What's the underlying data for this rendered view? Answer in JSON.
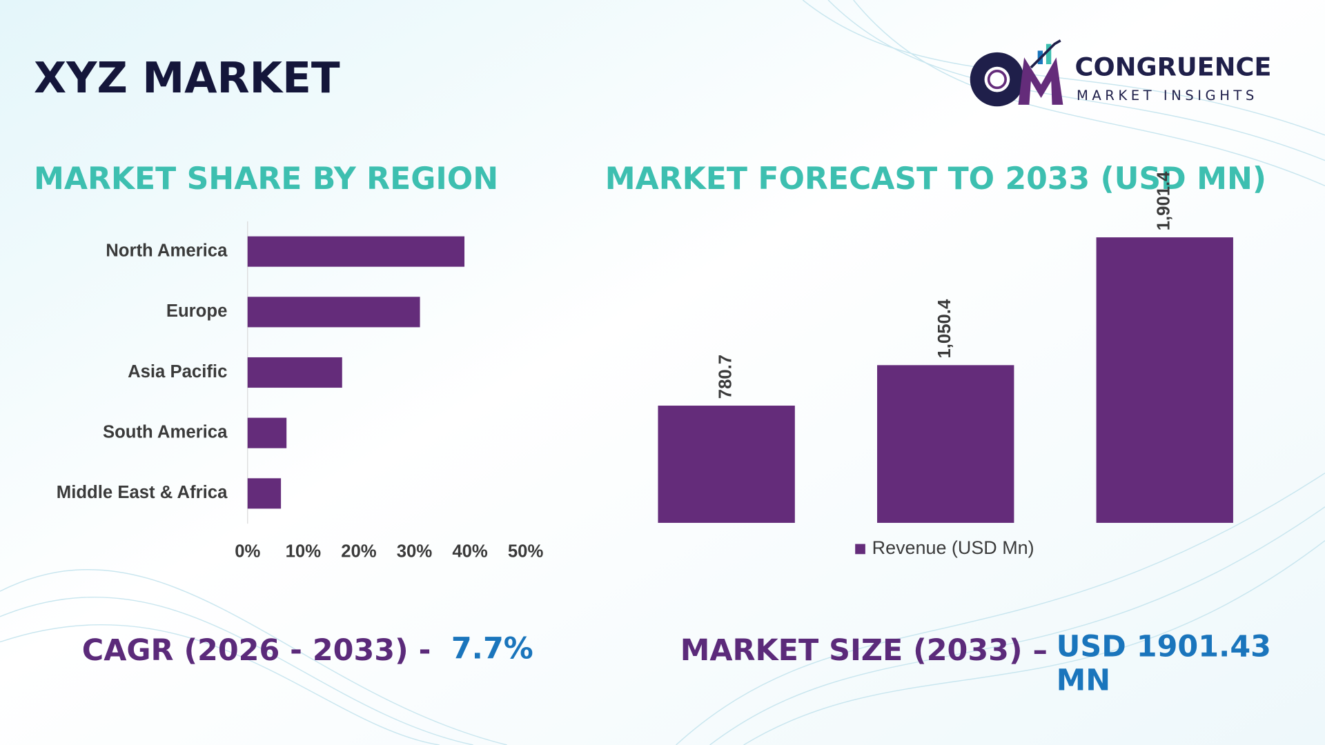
{
  "header": {
    "title": "XYZ MARKET",
    "logo": {
      "name": "CONGRUENCE",
      "tagline": "MARKET INSIGHTS"
    }
  },
  "chart_data": [
    {
      "type": "hbar",
      "title": "MARKET SHARE BY REGION",
      "categories": [
        "North America",
        "Europe",
        "Asia Pacific",
        "South America",
        "Middle East & Africa"
      ],
      "values": [
        39,
        31,
        17,
        7,
        6
      ],
      "color": "#642c7a",
      "xlim": [
        0,
        50
      ],
      "xticks": [
        {
          "value": 0,
          "label": "0%"
        },
        {
          "value": 10,
          "label": "10%"
        },
        {
          "value": 20,
          "label": "20%"
        },
        {
          "value": 30,
          "label": "30%"
        },
        {
          "value": 40,
          "label": "40%"
        },
        {
          "value": 50,
          "label": "50%"
        }
      ]
    },
    {
      "type": "bar",
      "title": "MARKET FORECAST TO 2033 (USD MN)",
      "categories": [
        null,
        null,
        null
      ],
      "series": [
        {
          "name": "Revenue (USD Mn)",
          "color": "#642c7a",
          "values": [
            780.7,
            1050.4,
            1901.4
          ],
          "value_labels": [
            "780.7",
            "1,050.4",
            "1,901.4"
          ]
        }
      ],
      "legend": "bottom"
    }
  ],
  "footer": {
    "cagr": {
      "label": "CAGR (2026 - 2033) -",
      "value": "7.7%"
    },
    "market_size": {
      "label": "MARKET SIZE (2033) –",
      "value": "USD 1901.43 MN"
    }
  }
}
